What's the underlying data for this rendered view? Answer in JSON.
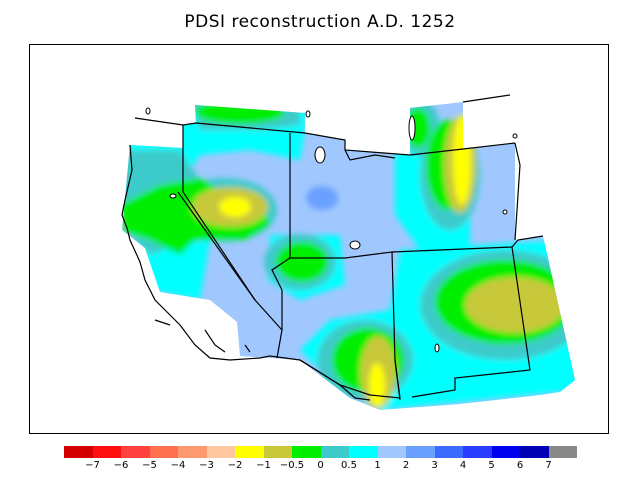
{
  "title": "PDSI reconstruction A.D. 1252",
  "legend": {
    "colors": [
      "#d40000",
      "#ff1010",
      "#ff4040",
      "#ff7050",
      "#ff9a70",
      "#ffc8a0",
      "#ffff00",
      "#c8c83a",
      "#00ee00",
      "#3ccaca",
      "#00ffff",
      "#a0c8ff",
      "#6aa0ff",
      "#3c6aff",
      "#2a3cff",
      "#0000ee",
      "#0000b4",
      "#888888"
    ],
    "labels": [
      "−7",
      "−6",
      "−5",
      "−4",
      "−3",
      "−2",
      "−1",
      "−0.5",
      "0",
      "0.5",
      "1",
      "2",
      "3",
      "4",
      "5",
      "6",
      "7"
    ]
  }
}
